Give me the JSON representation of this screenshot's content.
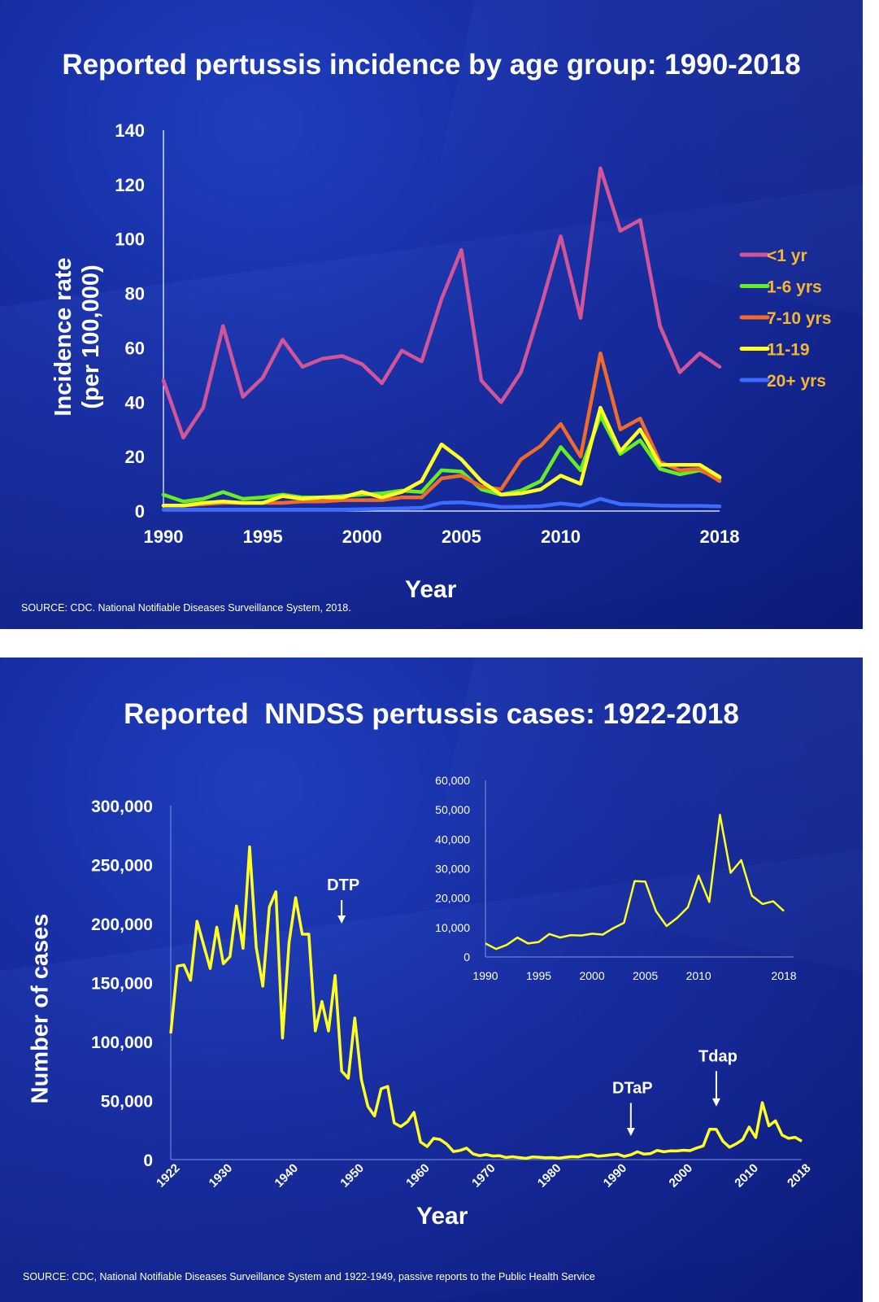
{
  "chart_data": [
    {
      "type": "line",
      "title": "Reported pertussis incidence by age group: 1990-2018",
      "xlabel": "Year",
      "ylabel": "Incidence rate\n(per 100,000)",
      "xlim": [
        1990,
        2018
      ],
      "ylim": [
        0,
        140
      ],
      "x_ticks": [
        "1990",
        "1995",
        "2000",
        "2005",
        "2010",
        "2018"
      ],
      "y_ticks": [
        "0",
        "20",
        "40",
        "60",
        "80",
        "100",
        "120",
        "140"
      ],
      "grid": false,
      "legend_position": "right",
      "x": [
        1990,
        1991,
        1992,
        1993,
        1994,
        1995,
        1996,
        1997,
        1998,
        1999,
        2000,
        2001,
        2002,
        2003,
        2004,
        2005,
        2006,
        2007,
        2008,
        2009,
        2010,
        2011,
        2012,
        2013,
        2014,
        2015,
        2016,
        2017,
        2018
      ],
      "series": [
        {
          "name": "<1 yr",
          "color": "#d2559a",
          "values": [
            48,
            27,
            38,
            68,
            42,
            49,
            63,
            53,
            56,
            57,
            54,
            47,
            59,
            55,
            78,
            96,
            48,
            40,
            51,
            75,
            101,
            71,
            126,
            103,
            107,
            68,
            51,
            58,
            53
          ]
        },
        {
          "name": "1-6 yrs",
          "color": "#66ee22",
          "values": [
            6,
            3.5,
            4.5,
            7,
            4.5,
            5,
            6,
            5,
            5,
            5.5,
            6,
            6.5,
            7.5,
            7,
            15,
            14.5,
            8,
            6,
            7.5,
            11,
            23.5,
            15,
            35,
            21,
            26,
            15.5,
            13.5,
            15,
            12
          ]
        },
        {
          "name": "7-10 yrs",
          "color": "#f06a2c",
          "values": [
            2,
            2,
            2.5,
            3,
            3,
            3,
            3,
            3.5,
            3.5,
            4,
            4,
            4,
            5,
            5,
            12,
            13,
            9,
            8,
            19,
            24,
            32,
            20,
            58,
            30,
            34,
            18,
            15,
            15.5,
            11
          ]
        },
        {
          "name": "11-19",
          "color": "#ffff22",
          "values": [
            2,
            2,
            3,
            3.5,
            3,
            3,
            5.5,
            4.5,
            5,
            5,
            7,
            5,
            7,
            11,
            24.5,
            19,
            11,
            6,
            6.5,
            8,
            13,
            10,
            38,
            22,
            30,
            17,
            17,
            17,
            12.5
          ]
        },
        {
          "name": "20+ yrs",
          "color": "#3d6bff",
          "values": [
            0.5,
            0.5,
            0.5,
            0.5,
            0.5,
            0.5,
            0.5,
            0.5,
            0.5,
            0.5,
            0.7,
            0.8,
            1,
            1.2,
            3,
            3.2,
            2.5,
            1.5,
            1.6,
            1.8,
            2.8,
            2,
            4.5,
            2.5,
            2.3,
            2,
            1.9,
            1.9,
            1.7
          ]
        }
      ],
      "source": "SOURCE: CDC. National Notifiable Diseases Surveillance System, 2018."
    },
    {
      "type": "line",
      "title": "Reported  NNDSS pertussis cases: 1922-2018",
      "xlabel": "Year",
      "ylabel": "Number of cases",
      "xlim": [
        1922,
        2018
      ],
      "ylim": [
        0,
        300000
      ],
      "x_ticks": [
        "1922",
        "1930",
        "1940",
        "1950",
        "1960",
        "1970",
        "1980",
        "1990",
        "2000",
        "2010",
        "2018"
      ],
      "y_ticks": [
        "0",
        "50,000",
        "100,000",
        "150,000",
        "200,000",
        "250,000",
        "300,000"
      ],
      "grid": false,
      "color": "#ffff22",
      "annotations": [
        {
          "text": "DTP",
          "year": 1948,
          "arrow_top": 220000,
          "arrow_bottom": 200000
        },
        {
          "text": "DTaP",
          "year": 1992,
          "arrow_top": 48000,
          "arrow_bottom": 20000
        },
        {
          "text": "Tdap",
          "year": 2005,
          "arrow_top": 75000,
          "arrow_bottom": 45000
        }
      ],
      "x": [
        1922,
        1923,
        1924,
        1925,
        1926,
        1927,
        1928,
        1929,
        1930,
        1931,
        1932,
        1933,
        1934,
        1935,
        1936,
        1937,
        1938,
        1939,
        1940,
        1941,
        1942,
        1943,
        1944,
        1945,
        1946,
        1947,
        1948,
        1949,
        1950,
        1951,
        1952,
        1953,
        1954,
        1955,
        1956,
        1957,
        1958,
        1959,
        1960,
        1961,
        1962,
        1963,
        1964,
        1965,
        1966,
        1967,
        1968,
        1969,
        1970,
        1971,
        1972,
        1973,
        1974,
        1975,
        1976,
        1977,
        1978,
        1979,
        1980,
        1981,
        1982,
        1983,
        1984,
        1985,
        1986,
        1987,
        1988,
        1989,
        1990,
        1991,
        1992,
        1993,
        1994,
        1995,
        1996,
        1997,
        1998,
        1999,
        2000,
        2001,
        2002,
        2003,
        2004,
        2005,
        2006,
        2007,
        2008,
        2009,
        2010,
        2011,
        2012,
        2013,
        2014,
        2015,
        2016,
        2017,
        2018
      ],
      "values": [
        107000,
        164000,
        165000,
        152000,
        202000,
        182000,
        162000,
        197000,
        166000,
        172000,
        215000,
        179000,
        265000,
        180000,
        147000,
        214000,
        227000,
        103000,
        184000,
        222000,
        191000,
        191000,
        109000,
        134000,
        109000,
        156000,
        75000,
        69000,
        120000,
        68000,
        45000,
        37000,
        60000,
        62000,
        31000,
        28000,
        32000,
        40000,
        15000,
        11000,
        18000,
        17000,
        13000,
        6800,
        7700,
        9700,
        4800,
        3300,
        4200,
        3000,
        3300,
        1800,
        2400,
        1700,
        1000,
        2200,
        2000,
        1600,
        1700,
        1200,
        1900,
        2500,
        2300,
        3600,
        4200,
        2800,
        3400,
        4100,
        4600,
        2700,
        4100,
        6600,
        4600,
        5100,
        7800,
        6600,
        7400,
        7300,
        7900,
        7600,
        9800,
        11600,
        25800,
        25600,
        15600,
        10500,
        13300,
        16900,
        27600,
        18700,
        48300,
        28600,
        32900,
        20800,
        18000,
        18900,
        15600
      ],
      "source": "SOURCE: CDC, National Notifiable Diseases Surveillance System and 1922-1949, passive reports to the Public Health Service",
      "inset": {
        "type": "line",
        "xlim": [
          1990,
          2018
        ],
        "ylim": [
          0,
          60000
        ],
        "x_ticks": [
          "1990",
          "1995",
          "2000",
          "2005",
          "2010",
          "2018"
        ],
        "y_ticks": [
          "0",
          "10,000",
          "20,000",
          "30,000",
          "40,000",
          "50,000",
          "60,000"
        ],
        "x": [
          1990,
          1991,
          1992,
          1993,
          1994,
          1995,
          1996,
          1997,
          1998,
          1999,
          2000,
          2001,
          2002,
          2003,
          2004,
          2005,
          2006,
          2007,
          2008,
          2009,
          2010,
          2011,
          2012,
          2013,
          2014,
          2015,
          2016,
          2017,
          2018
        ],
        "values": [
          4600,
          2700,
          4100,
          6600,
          4600,
          5100,
          7800,
          6600,
          7400,
          7300,
          7900,
          7600,
          9800,
          11600,
          25800,
          25600,
          15600,
          10500,
          13300,
          16900,
          27600,
          18700,
          48300,
          28600,
          32900,
          20800,
          18000,
          18900,
          15600
        ]
      }
    }
  ]
}
